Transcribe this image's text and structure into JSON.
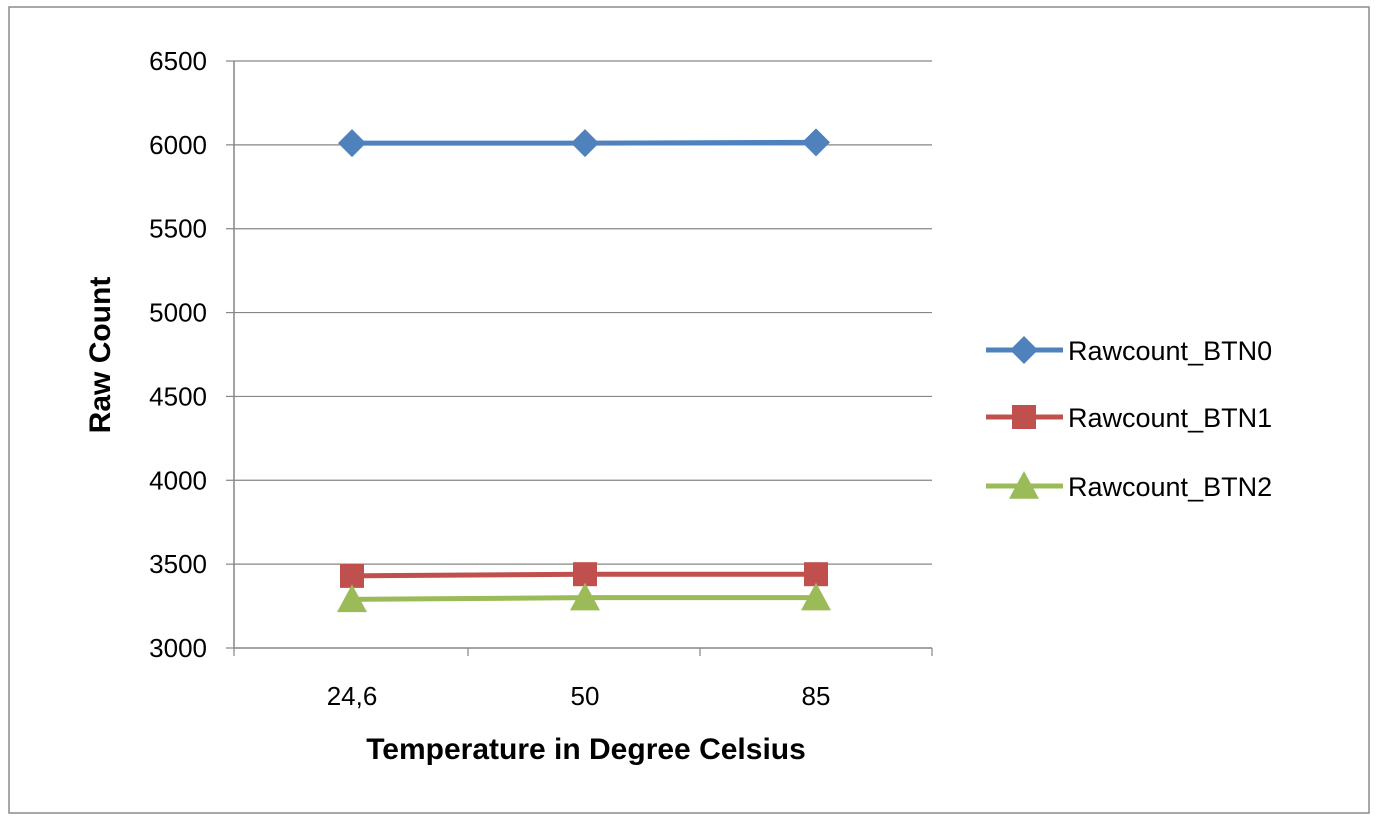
{
  "chart_data": {
    "type": "line",
    "categories": [
      "24,6",
      "50",
      "85"
    ],
    "series": [
      {
        "name": "Rawcount_BTN0",
        "values": [
          6010,
          6010,
          6015
        ],
        "color": "#4F81BD",
        "marker": "diamond"
      },
      {
        "name": "Rawcount_BTN1",
        "values": [
          3430,
          3440,
          3440
        ],
        "color": "#C0504D",
        "marker": "square"
      },
      {
        "name": "Rawcount_BTN2",
        "values": [
          3290,
          3300,
          3300
        ],
        "color": "#9BBB59",
        "marker": "triangle"
      }
    ],
    "title": "",
    "xlabel": "Temperature in Degree Celsius",
    "ylabel": "Raw Count",
    "ylim": [
      3000,
      6500
    ],
    "yticks": [
      "3000",
      "3500",
      "4000",
      "4500",
      "5000",
      "5500",
      "6000",
      "6500"
    ],
    "grid": true,
    "legend": "right"
  }
}
